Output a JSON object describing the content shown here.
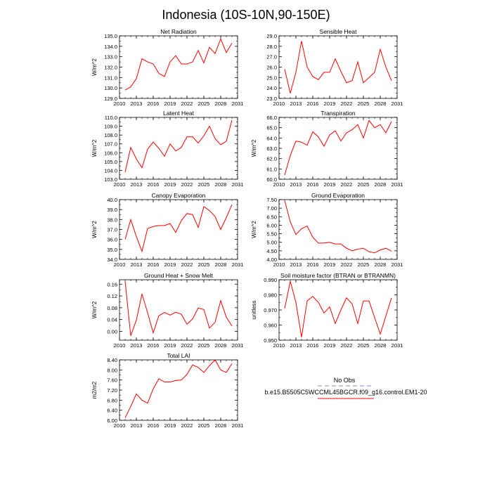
{
  "title": "Indonesia (10S-10N,90-150E)",
  "legend": {
    "obs_label": "No Obs",
    "obs_color": "#a0a0c0",
    "model_label": "b.e15.B5505C5WCCML45BGCR.f09_g16.control.EM1-20",
    "model_color": "#ff0000"
  },
  "chart_data": [
    {
      "type": "line",
      "title": "Net Radiation",
      "ylabel": "W/m^2",
      "xlim": [
        2010,
        2031
      ],
      "xticks": [
        2010,
        2013,
        2016,
        2019,
        2022,
        2025,
        2028,
        2031
      ],
      "ylim": [
        129.0,
        135.0
      ],
      "yticks": [
        129.0,
        130.0,
        131.0,
        132.0,
        133.0,
        134.0,
        135.0
      ],
      "ytick_labels": [
        "129.0",
        "130.0",
        "131.0",
        "132.0",
        "133.0",
        "134.0",
        "135.0"
      ],
      "x": [
        2011,
        2012,
        2013,
        2014,
        2015,
        2016,
        2017,
        2018,
        2019,
        2020,
        2021,
        2022,
        2023,
        2024,
        2025,
        2026,
        2027,
        2028,
        2029,
        2030
      ],
      "series": [
        {
          "name": "b.e15.B5505C5WCCML45BGCR.f09_g16.control.EM1-20",
          "values": [
            129.8,
            130.1,
            130.9,
            132.8,
            132.5,
            132.3,
            131.4,
            131.1,
            132.5,
            133.1,
            132.3,
            132.3,
            132.5,
            133.6,
            132.4,
            133.9,
            133.3,
            134.7,
            133.4,
            134.3
          ]
        }
      ]
    },
    {
      "type": "line",
      "title": "Sensible Heat",
      "ylabel": "",
      "xlim": [
        2010,
        2031
      ],
      "xticks": [
        2010,
        2013,
        2016,
        2019,
        2022,
        2025,
        2028,
        2031
      ],
      "ylim": [
        23.0,
        29.0
      ],
      "yticks": [
        23.0,
        24.0,
        25.0,
        26.0,
        27.0,
        28.0,
        29.0
      ],
      "ytick_labels": [
        "23.0",
        "24.0",
        "25.0",
        "26.0",
        "27.0",
        "28.0",
        "29.0"
      ],
      "x": [
        2011,
        2012,
        2013,
        2014,
        2015,
        2016,
        2017,
        2018,
        2019,
        2020,
        2021,
        2022,
        2023,
        2024,
        2025,
        2026,
        2027,
        2028,
        2029,
        2030
      ],
      "series": [
        {
          "name": "b.e15.B5505C5WCCML45BGCR.f09_g16.control.EM1-20",
          "values": [
            25.8,
            23.5,
            25.5,
            28.5,
            26.0,
            25.1,
            24.8,
            25.5,
            25.5,
            26.8,
            25.6,
            24.5,
            24.7,
            26.5,
            24.5,
            25.0,
            25.5,
            27.7,
            26.0,
            24.7
          ]
        }
      ]
    },
    {
      "type": "line",
      "title": "Latent Heat",
      "ylabel": "W/m^2",
      "xlim": [
        2010,
        2031
      ],
      "xticks": [
        2010,
        2013,
        2016,
        2019,
        2022,
        2025,
        2028,
        2031
      ],
      "ylim": [
        103.0,
        110.0
      ],
      "yticks": [
        103.0,
        104.0,
        105.0,
        106.0,
        107.0,
        108.0,
        109.0,
        110.0
      ],
      "ytick_labels": [
        "103.0",
        "104.0",
        "105.0",
        "106.0",
        "107.0",
        "108.0",
        "109.0",
        "110.0"
      ],
      "x": [
        2011,
        2012,
        2013,
        2014,
        2015,
        2016,
        2017,
        2018,
        2019,
        2020,
        2021,
        2022,
        2023,
        2024,
        2025,
        2026,
        2027,
        2028,
        2029,
        2030
      ],
      "series": [
        {
          "name": "b.e15.B5505C5WCCML45BGCR.f09_g16.control.EM1-20",
          "values": [
            103.8,
            106.6,
            105.3,
            104.3,
            106.4,
            107.2,
            106.5,
            105.6,
            107.0,
            106.2,
            106.6,
            107.8,
            107.8,
            107.1,
            107.9,
            109.0,
            107.6,
            106.9,
            107.3,
            109.7
          ]
        }
      ]
    },
    {
      "type": "line",
      "title": "Transpiration",
      "ylabel": "W/m^2",
      "xlim": [
        2010,
        2031
      ],
      "xticks": [
        2010,
        2013,
        2016,
        2019,
        2022,
        2025,
        2028,
        2031
      ],
      "ylim": [
        60.0,
        66.0
      ],
      "yticks": [
        60.0,
        61.0,
        62.0,
        63.0,
        64.0,
        65.0,
        66.0
      ],
      "ytick_labels": [
        "60.0",
        "61.0",
        "62.0",
        "63.0",
        "64.0",
        "65.0",
        "66.0"
      ],
      "x": [
        2011,
        2012,
        2013,
        2014,
        2015,
        2016,
        2017,
        2018,
        2019,
        2020,
        2021,
        2022,
        2023,
        2024,
        2025,
        2026,
        2027,
        2028,
        2029,
        2030
      ],
      "series": [
        {
          "name": "b.e15.B5505C5WCCML45BGCR.f09_g16.control.EM1-20",
          "values": [
            60.4,
            62.3,
            63.7,
            63.6,
            63.3,
            64.6,
            64.1,
            63.2,
            64.3,
            64.7,
            63.7,
            64.5,
            64.8,
            65.3,
            64.0,
            65.7,
            65.0,
            65.3,
            64.5,
            65.6
          ]
        }
      ]
    },
    {
      "type": "line",
      "title": "Canopy Evaporation",
      "ylabel": "W/m^2",
      "xlim": [
        2010,
        2031
      ],
      "xticks": [
        2010,
        2013,
        2016,
        2019,
        2022,
        2025,
        2028,
        2031
      ],
      "ylim": [
        34.0,
        40.0
      ],
      "yticks": [
        34.0,
        35.0,
        36.0,
        37.0,
        38.0,
        39.0,
        40.0
      ],
      "ytick_labels": [
        "34.0",
        "35.0",
        "36.0",
        "37.0",
        "38.0",
        "39.0",
        "40.0"
      ],
      "x": [
        2011,
        2012,
        2013,
        2014,
        2015,
        2016,
        2017,
        2018,
        2019,
        2020,
        2021,
        2022,
        2023,
        2024,
        2025,
        2026,
        2027,
        2028,
        2029,
        2030
      ],
      "series": [
        {
          "name": "b.e15.B5505C5WCCML45BGCR.f09_g16.control.EM1-20",
          "values": [
            36.0,
            38.0,
            36.3,
            34.8,
            37.1,
            37.3,
            37.4,
            37.4,
            37.6,
            36.7,
            37.9,
            38.6,
            38.5,
            37.2,
            39.3,
            38.9,
            38.3,
            37.0,
            38.2,
            39.5
          ]
        }
      ]
    },
    {
      "type": "line",
      "title": "Ground Evaporation",
      "ylabel": "W/m^2",
      "xlim": [
        2010,
        2031
      ],
      "xticks": [
        2010,
        2013,
        2016,
        2019,
        2022,
        2025,
        2028,
        2031
      ],
      "ylim": [
        4.0,
        7.5
      ],
      "yticks": [
        4.0,
        4.5,
        5.0,
        5.5,
        6.0,
        6.5,
        7.0,
        7.5
      ],
      "ytick_labels": [
        "4.00",
        "4.50",
        "5.00",
        "5.50",
        "6.00",
        "6.50",
        "7.00",
        "7.50"
      ],
      "x": [
        2011,
        2012,
        2013,
        2014,
        2015,
        2016,
        2017,
        2018,
        2019,
        2020,
        2021,
        2022,
        2023,
        2024,
        2025,
        2026,
        2027,
        2028,
        2029,
        2030
      ],
      "series": [
        {
          "name": "b.e15.B5505C5WCCML45BGCR.f09_g16.control.EM1-20",
          "values": [
            7.45,
            6.2,
            5.45,
            5.8,
            5.95,
            5.3,
            4.95,
            4.95,
            5.0,
            4.9,
            4.9,
            4.65,
            4.5,
            4.6,
            4.65,
            4.45,
            4.38,
            4.55,
            4.65,
            4.48
          ]
        }
      ]
    },
    {
      "type": "line",
      "title": "Ground Heat + Snow Melt",
      "ylabel": "W/m^2",
      "xlim": [
        2010,
        2031
      ],
      "xticks": [
        2010,
        2013,
        2016,
        2019,
        2022,
        2025,
        2028,
        2031
      ],
      "ylim": [
        -0.03,
        0.175
      ],
      "yticks": [
        0.0,
        0.04,
        0.08,
        0.12,
        0.16
      ],
      "ytick_labels": [
        "0.00",
        "0.04",
        "0.08",
        "0.12",
        "0.16"
      ],
      "x": [
        2011,
        2012,
        2013,
        2014,
        2015,
        2016,
        2017,
        2018,
        2019,
        2020,
        2021,
        2022,
        2023,
        2024,
        2025,
        2026,
        2027,
        2028,
        2029,
        2030
      ],
      "series": [
        {
          "name": "b.e15.B5505C5WCCML45BGCR.f09_g16.control.EM1-20",
          "values": [
            0.17,
            -0.015,
            0.038,
            0.127,
            0.063,
            -0.005,
            0.053,
            0.064,
            0.055,
            0.065,
            0.058,
            0.024,
            0.042,
            0.079,
            0.074,
            0.011,
            0.031,
            0.104,
            0.048,
            0.018
          ]
        }
      ]
    },
    {
      "type": "line",
      "title": "Soil moisture factor (BTRAN or BTRANMN)",
      "ylabel": "unitless",
      "xlim": [
        2010,
        2031
      ],
      "xticks": [
        2010,
        2013,
        2016,
        2019,
        2022,
        2025,
        2028,
        2031
      ],
      "ylim": [
        0.95,
        0.99
      ],
      "yticks": [
        0.95,
        0.96,
        0.97,
        0.98,
        0.99
      ],
      "ytick_labels": [
        "0.950",
        "0.960",
        "0.970",
        "0.980",
        "0.990"
      ],
      "x": [
        2011,
        2012,
        2013,
        2014,
        2015,
        2016,
        2017,
        2018,
        2019,
        2020,
        2021,
        2022,
        2023,
        2024,
        2025,
        2026,
        2027,
        2028,
        2029,
        2030
      ],
      "series": [
        {
          "name": "b.e15.B5505C5WCCML45BGCR.f09_g16.control.EM1-20",
          "values": [
            0.971,
            0.989,
            0.975,
            0.952,
            0.976,
            0.979,
            0.975,
            0.968,
            0.972,
            0.961,
            0.97,
            0.978,
            0.974,
            0.961,
            0.976,
            0.976,
            0.965,
            0.954,
            0.966,
            0.978
          ]
        }
      ]
    },
    {
      "type": "line",
      "title": "Total LAI",
      "ylabel": "m2/m2",
      "xlim": [
        2010,
        2031
      ],
      "xticks": [
        2010,
        2013,
        2016,
        2019,
        2022,
        2025,
        2028,
        2031
      ],
      "ylim": [
        6.0,
        8.4
      ],
      "yticks": [
        6.0,
        6.4,
        6.8,
        7.2,
        7.6,
        8.0,
        8.4
      ],
      "ytick_labels": [
        "6.00",
        "6.40",
        "6.80",
        "7.20",
        "7.60",
        "8.00",
        "8.40"
      ],
      "x": [
        2011,
        2012,
        2013,
        2014,
        2015,
        2016,
        2017,
        2018,
        2019,
        2020,
        2021,
        2022,
        2023,
        2024,
        2025,
        2026,
        2027,
        2028,
        2029,
        2030
      ],
      "series": [
        {
          "name": "b.e15.B5505C5WCCML45BGCR.f09_g16.control.EM1-20",
          "values": [
            6.1,
            6.55,
            7.05,
            6.8,
            6.68,
            7.25,
            7.65,
            7.52,
            7.52,
            7.58,
            7.6,
            7.82,
            8.2,
            8.1,
            7.9,
            8.17,
            8.4,
            8.0,
            7.9,
            8.25
          ]
        }
      ]
    }
  ]
}
